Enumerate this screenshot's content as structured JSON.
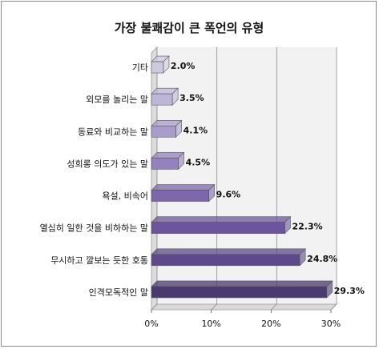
{
  "chart_data": {
    "type": "bar",
    "orientation": "horizontal",
    "title": "가장 불쾌감이 큰 폭언의 유형",
    "categories": [
      "기타",
      "외모를 놀리는 말",
      "동료와 비교하는 말",
      "성희롱 의도가 있는 말",
      "욕설, 비속어",
      "열심히 일한 것을 비하하는 말",
      "무시하고 깔보는 듯한 호통",
      "인격모독적인 말"
    ],
    "values": [
      2.0,
      3.5,
      4.1,
      4.5,
      9.6,
      22.3,
      24.8,
      29.3
    ],
    "value_labels": [
      "2.0%",
      "3.5%",
      "4.1%",
      "4.5%",
      "9.6%",
      "22.3%",
      "24.8%",
      "29.3%"
    ],
    "xlim": [
      0,
      30
    ],
    "x_ticks": [
      "0%",
      "10%",
      "20%",
      "30%"
    ],
    "grid": true,
    "bar_colors": [
      "#cfc9e0",
      "#beb6d8",
      "#a99ccb",
      "#9382bd",
      "#7e66ad",
      "#6c559c",
      "#5e4a8a",
      "#4a3a70"
    ],
    "wall_color": "#f2f2f2"
  }
}
